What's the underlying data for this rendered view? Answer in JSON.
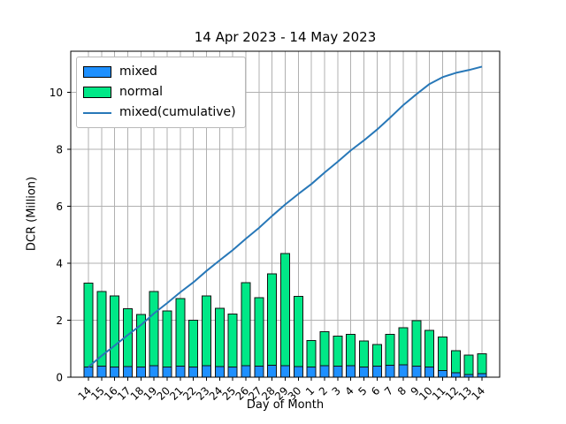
{
  "figure": {
    "title": "14 Apr 2023 - 14 May 2023",
    "xlabel": "Day of Month",
    "ylabel": "DCR (Million)"
  },
  "legend": {
    "items": [
      {
        "label": "mixed",
        "swatch": "patch",
        "color": "#1e90ff"
      },
      {
        "label": "normal",
        "swatch": "patch",
        "color": "#00e887"
      },
      {
        "label": "mixed(cumulative)",
        "swatch": "line",
        "color": "#2878b8"
      }
    ]
  },
  "colors": {
    "mixed_bar": "#1e90ff",
    "normal_bar": "#00e887",
    "cumulative_line": "#2878b8",
    "bar_edge": "#111111",
    "grid": "#b0b0b0",
    "axis": "#000000"
  },
  "chart_data": {
    "type": "bar",
    "stacked": true,
    "title": "14 Apr 2023 - 14 May 2023",
    "xlabel": "Day of Month",
    "ylabel": "DCR (Million)",
    "categories": [
      "14",
      "15",
      "16",
      "17",
      "18",
      "19",
      "20",
      "21",
      "22",
      "23",
      "24",
      "25",
      "26",
      "27",
      "28",
      "29",
      "30",
      "1",
      "2",
      "3",
      "4",
      "5",
      "6",
      "7",
      "8",
      "9",
      "10",
      "11",
      "12",
      "13",
      "14"
    ],
    "series": [
      {
        "name": "mixed",
        "color": "#1e90ff",
        "values": [
          0.36,
          0.39,
          0.36,
          0.37,
          0.35,
          0.41,
          0.36,
          0.38,
          0.35,
          0.4,
          0.37,
          0.36,
          0.4,
          0.38,
          0.42,
          0.4,
          0.37,
          0.35,
          0.4,
          0.38,
          0.4,
          0.35,
          0.38,
          0.42,
          0.44,
          0.38,
          0.36,
          0.24,
          0.15,
          0.1,
          0.12
        ]
      },
      {
        "name": "normal",
        "color": "#00e887",
        "values": [
          2.94,
          2.61,
          2.49,
          2.03,
          1.85,
          2.59,
          1.96,
          2.38,
          1.65,
          2.46,
          2.05,
          1.86,
          2.92,
          2.41,
          3.2,
          3.94,
          2.47,
          0.93,
          1.2,
          1.06,
          1.11,
          0.92,
          0.77,
          1.09,
          1.3,
          1.6,
          1.28,
          1.17,
          0.78,
          0.68,
          0.7
        ]
      }
    ],
    "bar_totals": [
      3.3,
      3.0,
      2.85,
      2.4,
      2.2,
      3.0,
      2.32,
      2.76,
      2.0,
      2.86,
      2.42,
      2.22,
      3.32,
      2.79,
      3.62,
      4.34,
      2.84,
      1.28,
      1.6,
      1.44,
      1.51,
      1.27,
      1.15,
      1.51,
      1.74,
      1.98,
      1.64,
      1.41,
      0.93,
      0.78,
      0.82
    ],
    "line_series": {
      "name": "mixed(cumulative)",
      "color": "#2878b8",
      "values": [
        0.36,
        0.75,
        1.11,
        1.48,
        1.83,
        2.24,
        2.6,
        2.98,
        3.33,
        3.73,
        4.1,
        4.46,
        4.86,
        5.24,
        5.66,
        6.06,
        6.43,
        6.78,
        7.18,
        7.56,
        7.96,
        8.31,
        8.69,
        9.11,
        9.55,
        9.93,
        10.29,
        10.53,
        10.68,
        10.78,
        10.9
      ]
    },
    "ylim": [
      0,
      11.44
    ],
    "yticks": [
      0,
      2,
      4,
      6,
      8,
      10
    ],
    "grid": true,
    "x_tick_rotation": 45,
    "legend_position": "upper left"
  }
}
